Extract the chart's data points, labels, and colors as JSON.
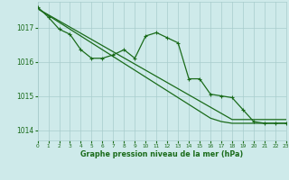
{
  "title": "Graphe pression niveau de la mer (hPa)",
  "bg_color": "#ceeaea",
  "grid_color": "#a8cccc",
  "line_color": "#1a6b1a",
  "xlim": [
    0,
    23
  ],
  "ylim": [
    1013.7,
    1017.75
  ],
  "yticks": [
    1014,
    1015,
    1016,
    1017
  ],
  "xticks": [
    0,
    1,
    2,
    3,
    4,
    5,
    6,
    7,
    8,
    9,
    10,
    11,
    12,
    13,
    14,
    15,
    16,
    17,
    18,
    19,
    20,
    21,
    22,
    23
  ],
  "series": {
    "straight1": [
      1017.55,
      1017.37,
      1017.19,
      1017.01,
      1016.83,
      1016.65,
      1016.47,
      1016.29,
      1016.11,
      1015.93,
      1015.75,
      1015.57,
      1015.39,
      1015.21,
      1015.03,
      1014.85,
      1014.67,
      1014.49,
      1014.31,
      1014.31,
      1014.31,
      1014.31,
      1014.31,
      1014.31
    ],
    "straight2": [
      1017.55,
      1017.35,
      1017.15,
      1016.95,
      1016.75,
      1016.55,
      1016.35,
      1016.15,
      1015.95,
      1015.75,
      1015.55,
      1015.35,
      1015.15,
      1014.95,
      1014.75,
      1014.55,
      1014.35,
      1014.25,
      1014.2,
      1014.2,
      1014.2,
      1014.2,
      1014.2,
      1014.2
    ],
    "main": [
      1017.6,
      1017.3,
      1016.95,
      1016.8,
      1016.35,
      1016.1,
      1016.1,
      1016.2,
      1016.35,
      1016.1,
      1016.75,
      1016.85,
      1016.7,
      1016.55,
      1015.5,
      1015.5,
      1015.05,
      1015.0,
      1014.95,
      1014.6,
      1014.25,
      1014.2,
      1014.2,
      1014.2
    ]
  }
}
